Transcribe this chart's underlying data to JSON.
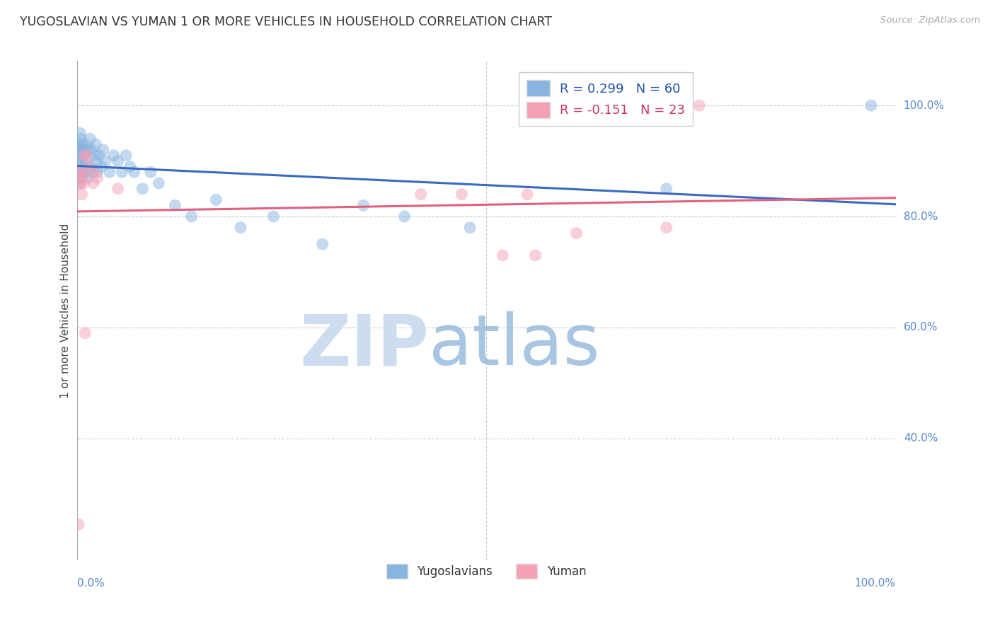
{
  "title": "YUGOSLAVIAN VS YUMAN 1 OR MORE VEHICLES IN HOUSEHOLD CORRELATION CHART",
  "source": "Source: ZipAtlas.com",
  "ylabel": "1 or more Vehicles in Household",
  "ytick_labels": [
    "100.0%",
    "80.0%",
    "60.0%",
    "40.0%"
  ],
  "ytick_values": [
    1.0,
    0.8,
    0.6,
    0.4
  ],
  "xtick_labels": [
    "0.0%",
    "100.0%"
  ],
  "xlim": [
    0.0,
    1.0
  ],
  "ylim": [
    0.18,
    1.08
  ],
  "legend_color1": "#88b4e0",
  "legend_color2": "#f4a0b5",
  "line_color1": "#3a6abf",
  "line_color2": "#e06080",
  "scatter_color1": "#88b4e0",
  "scatter_color2": "#f4a0b5",
  "R1": 0.299,
  "N1": 60,
  "R2": -0.151,
  "N2": 23,
  "yugoslav_x": [
    0.001,
    0.002,
    0.002,
    0.003,
    0.003,
    0.003,
    0.004,
    0.004,
    0.004,
    0.005,
    0.005,
    0.005,
    0.005,
    0.006,
    0.006,
    0.006,
    0.007,
    0.007,
    0.008,
    0.008,
    0.009,
    0.01,
    0.01,
    0.011,
    0.012,
    0.013,
    0.015,
    0.016,
    0.017,
    0.018,
    0.02,
    0.022,
    0.023,
    0.024,
    0.025,
    0.027,
    0.03,
    0.032,
    0.035,
    0.04,
    0.045,
    0.05,
    0.055,
    0.06,
    0.065,
    0.07,
    0.08,
    0.09,
    0.1,
    0.12,
    0.14,
    0.17,
    0.2,
    0.24,
    0.3,
    0.35,
    0.4,
    0.48,
    0.72,
    0.97
  ],
  "yugoslav_y": [
    0.88,
    0.93,
    0.87,
    0.91,
    0.89,
    0.86,
    0.95,
    0.92,
    0.88,
    0.94,
    0.91,
    0.89,
    0.87,
    0.93,
    0.91,
    0.88,
    0.92,
    0.89,
    0.92,
    0.89,
    0.91,
    0.93,
    0.88,
    0.92,
    0.9,
    0.87,
    0.92,
    0.94,
    0.89,
    0.92,
    0.88,
    0.91,
    0.93,
    0.9,
    0.88,
    0.91,
    0.89,
    0.92,
    0.9,
    0.88,
    0.91,
    0.9,
    0.88,
    0.91,
    0.89,
    0.88,
    0.85,
    0.88,
    0.86,
    0.82,
    0.8,
    0.83,
    0.78,
    0.8,
    0.75,
    0.82,
    0.8,
    0.78,
    0.85,
    1.0
  ],
  "yuman_x": [
    0.002,
    0.004,
    0.005,
    0.005,
    0.006,
    0.007,
    0.008,
    0.009,
    0.01,
    0.012,
    0.015,
    0.02,
    0.025,
    0.42,
    0.47,
    0.52,
    0.56,
    0.61,
    0.72,
    0.76,
    0.02,
    0.05,
    0.55
  ],
  "yuman_y": [
    0.245,
    0.88,
    0.88,
    0.86,
    0.84,
    0.87,
    0.86,
    0.91,
    0.59,
    0.91,
    0.89,
    0.88,
    0.87,
    0.84,
    0.84,
    0.73,
    0.73,
    0.77,
    0.78,
    1.0,
    0.86,
    0.85,
    0.84
  ]
}
